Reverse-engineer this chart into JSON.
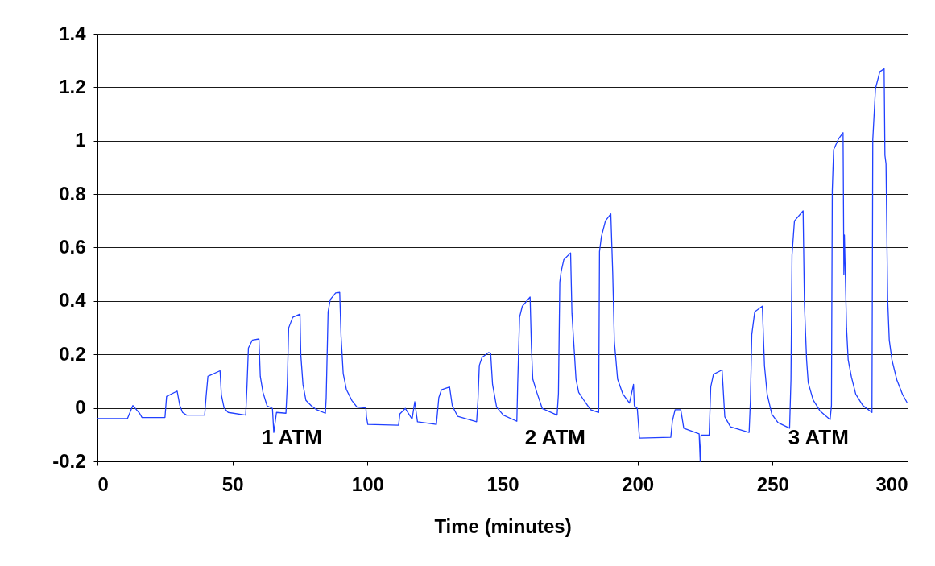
{
  "chart_data": {
    "type": "line",
    "xlabel": "Time (minutes)",
    "xlim": [
      0,
      300
    ],
    "xticks": [
      0,
      50,
      100,
      150,
      200,
      250,
      300
    ],
    "ylim": [
      -0.2,
      1.4
    ],
    "yticks": [
      -0.2,
      0,
      0.2,
      0.4,
      0.6,
      0.8,
      1,
      1.2,
      1.4
    ],
    "grid": "y",
    "marker": "none",
    "line_style": "solid",
    "annotations": [
      "1 ATM",
      "2 ATM",
      "3 ATM"
    ],
    "series": [
      {
        "color": "#2040ff",
        "x": [
          0,
          11.1,
          13.1,
          15.6,
          16.5,
          25,
          25.6,
          29.5,
          30.5,
          31.5,
          33,
          39.7,
          40.2,
          40.9,
          45.4,
          45.9,
          46.9,
          48.4,
          54.9,
          55.4,
          55.9,
          57.4,
          59.8,
          60.3,
          61.3,
          62.8,
          64.8,
          65.3,
          66.3,
          69.8,
          70.3,
          70.8,
          72.3,
          75.0,
          75.3,
          76.1,
          77.2,
          79.2,
          81.2,
          84.4,
          84.7,
          85.4,
          86.2,
          88.2,
          89.7,
          90.2,
          91.0,
          92.2,
          94.2,
          96.1,
          99.4,
          99.6,
          100.1,
          111.5,
          112.0,
          114.0,
          116.5,
          117.5,
          118.5,
          125.5,
          126.4,
          127.4,
          130.4,
          131.4,
          133.4,
          140.4,
          140.9,
          141.4,
          142.4,
          144.8,
          145.6,
          146.3,
          147.8,
          150.3,
          155.3,
          155.6,
          156.3,
          157.3,
          160.2,
          160.7,
          161.2,
          162.7,
          164.7,
          170.2,
          170.7,
          171.2,
          171.7,
          172.7,
          175.2,
          175.7,
          177.2,
          178.2,
          180.5,
          182.6,
          185.6,
          185.9,
          186.6,
          188.1,
          190.1,
          190.8,
          191.4,
          192.6,
          194.5,
          197.0,
          198.5,
          198.8,
          199.9,
          200.7,
          212.3,
          212.9,
          213.9,
          216.0,
          217.1,
          222.8,
          223.2,
          223.5,
          226.5,
          227.1,
          228.1,
          231.3,
          232.3,
          234.4,
          241.3,
          241.8,
          242.3,
          243.4,
          246.2,
          247.0,
          248.0,
          249.7,
          252.0,
          256.3,
          256.8,
          257.2,
          258.1,
          261.3,
          261.8,
          262.6,
          263.2,
          265.0,
          267.6,
          271.3,
          271.8,
          272.1,
          272.6,
          274.5,
          276.1,
          276.4,
          276.6,
          277.4,
          278.0,
          279.2,
          280.8,
          283.4,
          286.8,
          287.1,
          288.1,
          289.7,
          291.3,
          291.6,
          292.0,
          292.6,
          293.2,
          294.2,
          296.0,
          298.1,
          299.8
        ],
        "values": [
          -0.04,
          -0.04,
          0.009,
          -0.02,
          -0.036,
          -0.036,
          0.043,
          0.063,
          0.009,
          -0.017,
          -0.027,
          -0.027,
          0.039,
          0.118,
          0.139,
          0.048,
          0.0,
          -0.017,
          -0.027,
          0.088,
          0.224,
          0.254,
          0.258,
          0.118,
          0.058,
          0.008,
          -0.002,
          -0.092,
          -0.017,
          -0.02,
          0.088,
          0.299,
          0.339,
          0.351,
          0.199,
          0.088,
          0.028,
          0.008,
          -0.007,
          -0.02,
          0.038,
          0.359,
          0.405,
          0.43,
          0.432,
          0.269,
          0.129,
          0.068,
          0.028,
          0.003,
          0.0,
          -0.032,
          -0.062,
          -0.065,
          -0.022,
          -0.002,
          -0.042,
          0.023,
          -0.052,
          -0.062,
          0.038,
          0.068,
          0.078,
          0.008,
          -0.032,
          -0.052,
          0.028,
          0.159,
          0.189,
          0.207,
          0.205,
          0.088,
          0.003,
          -0.027,
          -0.05,
          0.088,
          0.339,
          0.38,
          0.415,
          0.224,
          0.108,
          0.058,
          -0.002,
          -0.027,
          0.053,
          0.47,
          0.51,
          0.555,
          0.58,
          0.354,
          0.108,
          0.058,
          0.023,
          -0.007,
          -0.017,
          0.585,
          0.641,
          0.7,
          0.726,
          0.505,
          0.249,
          0.108,
          0.053,
          0.018,
          0.088,
          0.008,
          -0.002,
          -0.113,
          -0.11,
          -0.049,
          -0.007,
          -0.007,
          -0.076,
          -0.097,
          -0.2,
          -0.102,
          -0.102,
          0.078,
          0.126,
          0.142,
          -0.033,
          -0.071,
          -0.092,
          0.03,
          0.275,
          0.36,
          0.381,
          0.158,
          0.051,
          -0.023,
          -0.055,
          -0.076,
          0.105,
          0.573,
          0.7,
          0.737,
          0.386,
          0.179,
          0.094,
          0.03,
          -0.012,
          -0.044,
          0.009,
          0.812,
          0.966,
          1.008,
          1.03,
          0.498,
          0.647,
          0.296,
          0.179,
          0.115,
          0.051,
          0.009,
          -0.017,
          1.003,
          1.195,
          1.258,
          1.269,
          0.945,
          0.913,
          0.408,
          0.254,
          0.179,
          0.105,
          0.051,
          0.02
        ]
      }
    ]
  }
}
